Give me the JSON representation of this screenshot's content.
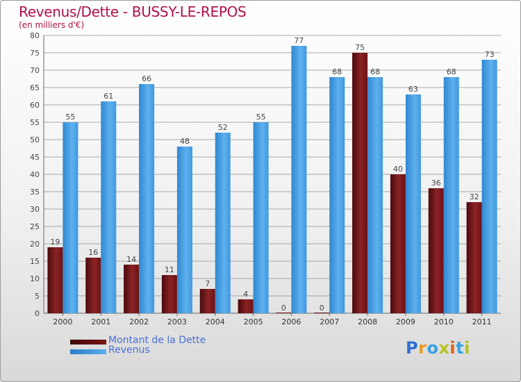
{
  "chart_data": {
    "type": "bar",
    "title": "Revenus/Dette - BUSSY-LE-REPOS",
    "subtitle": "(en milliers d'€)",
    "categories": [
      "2000",
      "2001",
      "2002",
      "2003",
      "2004",
      "2005",
      "2006",
      "2007",
      "2008",
      "2009",
      "2010",
      "2011"
    ],
    "series": [
      {
        "name": "Montant de la Dette",
        "color": "#7a1416",
        "values": [
          19,
          16,
          14,
          11,
          7,
          4,
          0,
          0,
          75,
          40,
          36,
          32
        ]
      },
      {
        "name": "Revenus",
        "color": "#4a9fe4",
        "values": [
          55,
          61,
          66,
          48,
          52,
          55,
          77,
          68,
          68,
          63,
          68,
          73
        ]
      }
    ],
    "ylim": [
      0,
      80
    ],
    "yticks": [
      0,
      5,
      10,
      15,
      20,
      25,
      30,
      35,
      40,
      45,
      50,
      55,
      60,
      65,
      70,
      75,
      80
    ],
    "grid": true,
    "legend_position": "bottom-left"
  },
  "brand": {
    "text": "Proxiti",
    "letters": [
      "P",
      "r",
      "o",
      "x",
      "i",
      "t",
      "i"
    ]
  }
}
